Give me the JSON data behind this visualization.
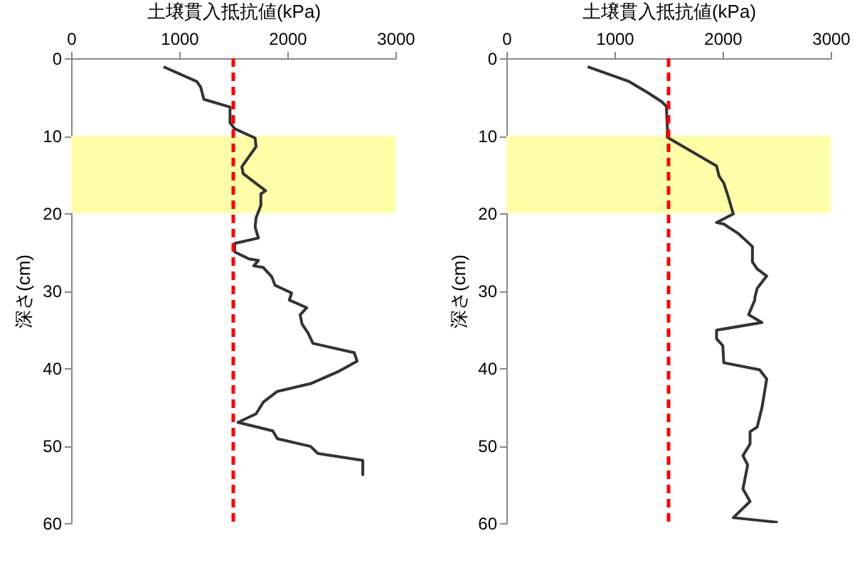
{
  "chart_data": [
    {
      "type": "line",
      "xlabel": "土壌貫入抵抗値(kPa)",
      "ylabel": "深さ(cm)",
      "xlim": [
        0,
        3000
      ],
      "xticks": [
        0,
        1000,
        2000,
        3000
      ],
      "ylim": [
        60,
        0
      ],
      "yticks": [
        0,
        10,
        20,
        30,
        40,
        50,
        60
      ],
      "marker": "none",
      "line_style": "solid",
      "bands": [
        {
          "axis": "y",
          "from": 10,
          "to": 20,
          "color": "#ffffaa"
        }
      ],
      "ref_lines": [
        {
          "axis": "x",
          "value": 1500,
          "color": "#ff0000",
          "line_style": "dashed"
        }
      ],
      "series": [
        {
          "color": "#333333",
          "x": [
            855,
            1162,
            1198,
            1228,
            1470,
            1470,
            1513,
            1702,
            1711,
            1579,
            1592,
            1799,
            1755,
            1755,
            1711,
            1702,
            1733,
            1513,
            1513,
            1645,
            1733,
            1689,
            1777,
            1856,
            1886,
            2040,
            2018,
            2180,
            2119,
            2136,
            2193,
            2237,
            2619,
            2645,
            2478,
            2215,
            1908,
            1777,
            1711,
            1544,
            1865,
            1908,
            2215,
            2281,
            2698,
            2698
          ],
          "values": [
            1.1,
            3.0,
            3.7,
            5.3,
            6.3,
            8.3,
            9.1,
            10.3,
            11.4,
            14.0,
            14.9,
            17.1,
            17.5,
            19.0,
            20.6,
            21.8,
            23.2,
            23.9,
            25.0,
            25.9,
            26.1,
            26.8,
            27.0,
            28.2,
            29.3,
            30.3,
            31.2,
            32.2,
            33.1,
            34.3,
            35.5,
            36.8,
            38.0,
            39.1,
            40.4,
            42.0,
            43.0,
            44.4,
            45.9,
            47.0,
            48.1,
            49.1,
            50.1,
            51.0,
            51.9,
            53.9
          ]
        }
      ]
    },
    {
      "type": "line",
      "xlabel": "土壌貫入抵抗値(kPa)",
      "ylabel": "深さ(cm)",
      "xlim": [
        0,
        3000
      ],
      "xticks": [
        0,
        1000,
        2000,
        3000
      ],
      "ylim": [
        60,
        0
      ],
      "yticks": [
        0,
        10,
        20,
        30,
        40,
        50,
        60
      ],
      "marker": "none",
      "line_style": "solid",
      "bands": [
        {
          "axis": "y",
          "from": 10,
          "to": 20,
          "color": "#ffffaa"
        }
      ],
      "ref_lines": [
        {
          "axis": "x",
          "value": 1500,
          "color": "#ff0000",
          "line_style": "dashed"
        }
      ],
      "series": [
        {
          "color": "#333333",
          "x": [
            751,
            1135,
            1304,
            1436,
            1480,
            1489,
            1489,
            1944,
            1967,
            2011,
            2055,
            2099,
            1944,
            2011,
            2143,
            2276,
            2276,
            2320,
            2408,
            2320,
            2298,
            2298,
            2241,
            2364,
            1944,
            1944,
            2002,
            2011,
            2342,
            2408,
            2364,
            2320,
            2254,
            2254,
            2188,
            2232,
            2188,
            2254,
            2099,
            2510
          ],
          "values": [
            1.1,
            3.0,
            4.4,
            5.6,
            6.2,
            9.0,
            10.2,
            13.9,
            15.2,
            16.1,
            18.0,
            20.1,
            21.2,
            21.4,
            22.6,
            24.3,
            26.3,
            27.2,
            28.1,
            29.7,
            30.9,
            31.2,
            33.1,
            34.1,
            35.1,
            36.2,
            37.1,
            39.3,
            40.2,
            41.4,
            45.1,
            47.6,
            48.2,
            49.8,
            51.3,
            52.5,
            55.6,
            57.2,
            59.3,
            59.9
          ]
        }
      ]
    }
  ]
}
